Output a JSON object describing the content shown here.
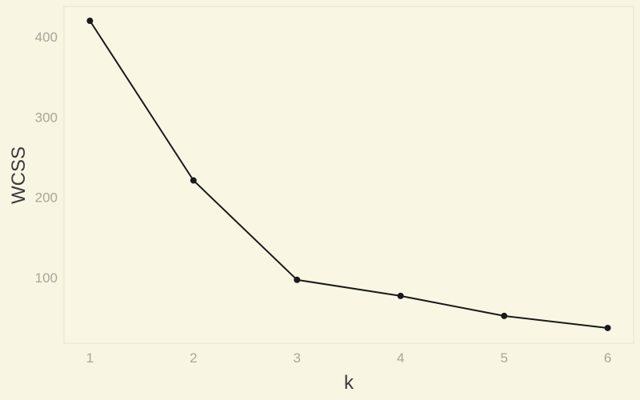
{
  "chart_data": {
    "type": "line",
    "title": "",
    "xlabel": "k",
    "ylabel": "WCSS",
    "x": [
      1,
      2,
      3,
      4,
      5,
      6
    ],
    "series": [
      {
        "values": [
          420,
          221,
          97,
          77,
          52,
          37
        ]
      }
    ],
    "xticks": [
      "1",
      "2",
      "3",
      "4",
      "5",
      "6"
    ],
    "yticks": [
      "100",
      "200",
      "300",
      "400"
    ],
    "xlim": [
      0.75,
      6.25
    ],
    "ylim": [
      18,
      438
    ],
    "grid": false,
    "legend": "none",
    "colors": {
      "background": "#f9f5e3",
      "plot_background": "#faf6e4",
      "line": "#1a1a1a",
      "tick_text": "#a9a59a",
      "axis_title": "#3a3a3a",
      "frame": "#e7e2cf"
    }
  }
}
